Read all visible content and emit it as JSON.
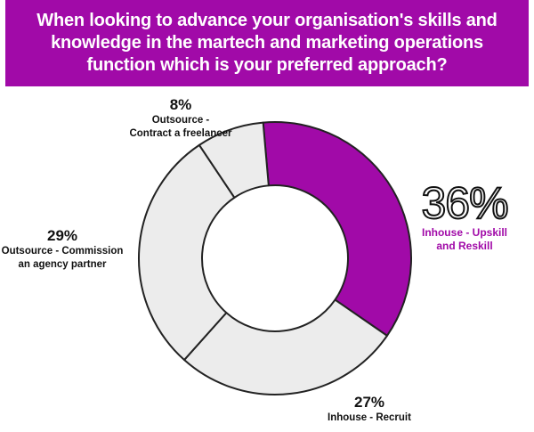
{
  "title": "When looking to advance your organisation's skills and knowledge in the martech and marketing operations function which is your preferred approach?",
  "colors": {
    "accent": "#a10aa8",
    "neutral_fill": "#ececec",
    "stroke": "#222222"
  },
  "chart_data": {
    "type": "pie",
    "variant": "donut",
    "title": "When looking to advance your organisation's skills and knowledge in the martech and marketing operations function which is your preferred approach?",
    "slices": [
      {
        "label_line1": "Inhouse - Upskill",
        "label_line2": "and Reskill",
        "value": 36,
        "display": "36%",
        "highlight": true,
        "color": "#a10aa8"
      },
      {
        "label_line1": "Inhouse - Recruit",
        "label_line2": "",
        "value": 27,
        "display": "27%",
        "highlight": false,
        "color": "#ececec"
      },
      {
        "label_line1": "Outsource - Commission",
        "label_line2": "an agency partner",
        "value": 29,
        "display": "29%",
        "highlight": false,
        "color": "#ececec"
      },
      {
        "label_line1": "Outsource -",
        "label_line2": "Contract a freelancer",
        "value": 8,
        "display": "8%",
        "highlight": false,
        "color": "#ececec"
      }
    ]
  }
}
